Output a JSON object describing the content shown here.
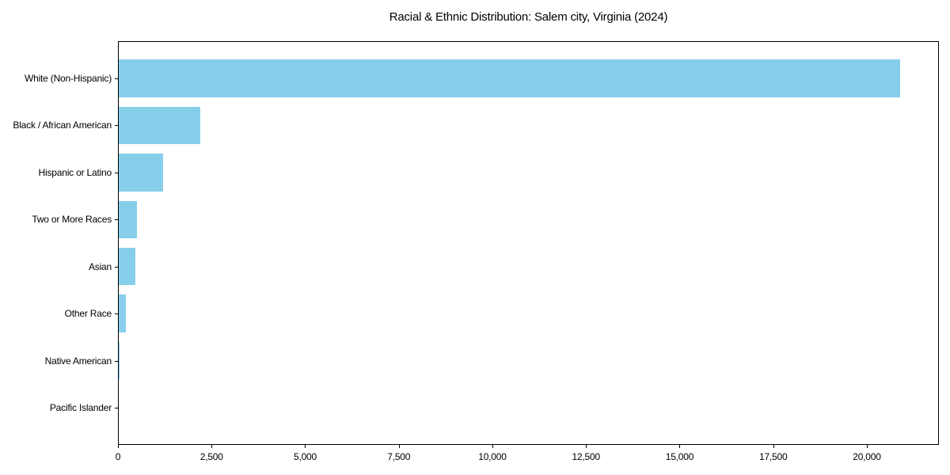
{
  "chart_data": {
    "type": "bar",
    "orientation": "horizontal",
    "title": "Racial & Ethnic Distribution: Salem city, Virginia (2024)",
    "categories": [
      "White (Non-Hispanic)",
      "Black / African American",
      "Hispanic or Latino",
      "Two or More Races",
      "Asian",
      "Other Race",
      "Native American",
      "Pacific Islander"
    ],
    "values": [
      20880,
      2190,
      1195,
      515,
      475,
      205,
      42,
      0
    ],
    "xlabel": "",
    "ylabel": "",
    "xlim": [
      0,
      21924
    ],
    "x_ticks": [
      {
        "value": 0,
        "label": "0"
      },
      {
        "value": 2500,
        "label": "2,500"
      },
      {
        "value": 5000,
        "label": "5,000"
      },
      {
        "value": 7500,
        "label": "7,500"
      },
      {
        "value": 10000,
        "label": "10,000"
      },
      {
        "value": 12500,
        "label": "12,500"
      },
      {
        "value": 15000,
        "label": "15,000"
      },
      {
        "value": 17500,
        "label": "17,500"
      },
      {
        "value": 20000,
        "label": "20,000"
      }
    ],
    "grid": false,
    "legend": null,
    "colors": {
      "bar": "#87CEEB",
      "axis": "#000000",
      "text": "#000000",
      "background": "#ffffff"
    }
  }
}
